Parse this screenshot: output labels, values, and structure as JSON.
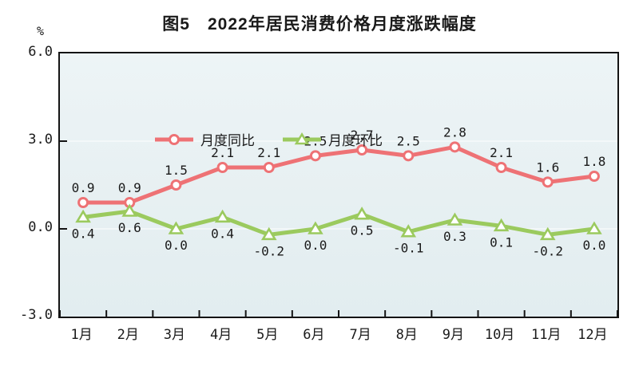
{
  "title": "图5　2022年居民消费价格月度涨跌幅度",
  "colors": {
    "series_yoy": "#ee7275",
    "series_mom": "#9bca5e",
    "plot_border": "#141414",
    "plot_background": "#e8f0f3",
    "text": "#1a1a1a"
  },
  "chart_data": {
    "type": "line",
    "title": "图5　2022年居民消费价格月度涨跌幅度",
    "ylabel": "%",
    "xlabel": "",
    "categories": [
      "1月",
      "2月",
      "3月",
      "4月",
      "5月",
      "6月",
      "7月",
      "8月",
      "9月",
      "10月",
      "11月",
      "12月"
    ],
    "series": [
      {
        "name": "月度同比",
        "marker": "circle",
        "color": "#ee7275",
        "labels": "above",
        "values": [
          0.9,
          0.9,
          1.5,
          2.1,
          2.1,
          2.5,
          2.7,
          2.5,
          2.8,
          2.1,
          1.6,
          1.8
        ]
      },
      {
        "name": "月度环比",
        "marker": "triangle",
        "color": "#9bca5e",
        "labels": "below",
        "values": [
          0.4,
          0.6,
          0.0,
          0.4,
          -0.2,
          0.0,
          0.5,
          -0.1,
          0.3,
          0.1,
          -0.2,
          0.0
        ]
      }
    ],
    "ylim": [
      -3.0,
      6.0
    ],
    "yticks": [
      6.0,
      3.0,
      0.0,
      -3.0
    ],
    "grid_values": [
      3.0,
      0.0
    ],
    "grid": true,
    "legend_position": "top-left-inside"
  }
}
